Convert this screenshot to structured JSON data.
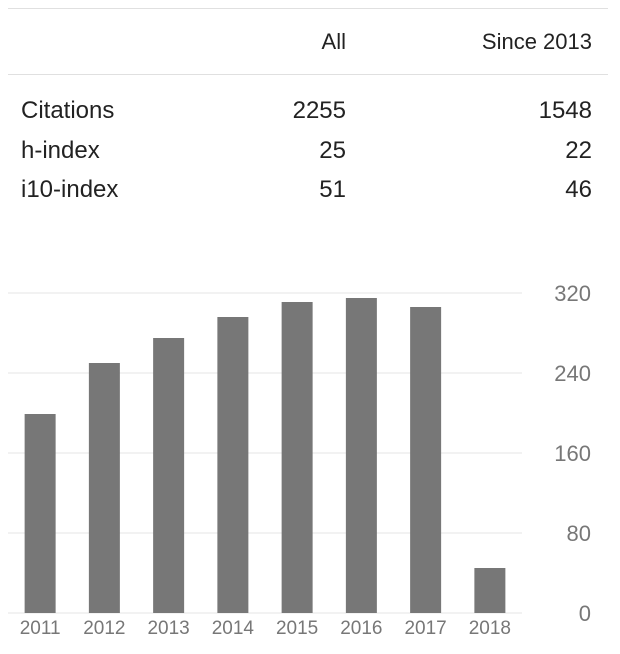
{
  "stats_table": {
    "columns": [
      "",
      "All",
      "Since 2013"
    ],
    "rows": [
      {
        "label": "Citations",
        "all": "2255",
        "since": "1548"
      },
      {
        "label": "h-index",
        "all": "25",
        "since": "22"
      },
      {
        "label": "i10-index",
        "all": "51",
        "since": "46"
      }
    ]
  },
  "colors": {
    "bar": "#777777",
    "gridline": "#e6e6e6",
    "tick_text": "#777777",
    "text": "#222222"
  },
  "chart_data": {
    "type": "bar",
    "title": "",
    "xlabel": "",
    "ylabel": "",
    "categories": [
      "2011",
      "2012",
      "2013",
      "2014",
      "2015",
      "2016",
      "2017",
      "2018"
    ],
    "values": [
      199,
      250,
      275,
      296,
      311,
      315,
      306,
      45
    ],
    "ylim": [
      0,
      320
    ],
    "yticks": [
      "0",
      "80",
      "160",
      "240",
      "320"
    ],
    "y_axis_side": "right",
    "grid": true
  }
}
